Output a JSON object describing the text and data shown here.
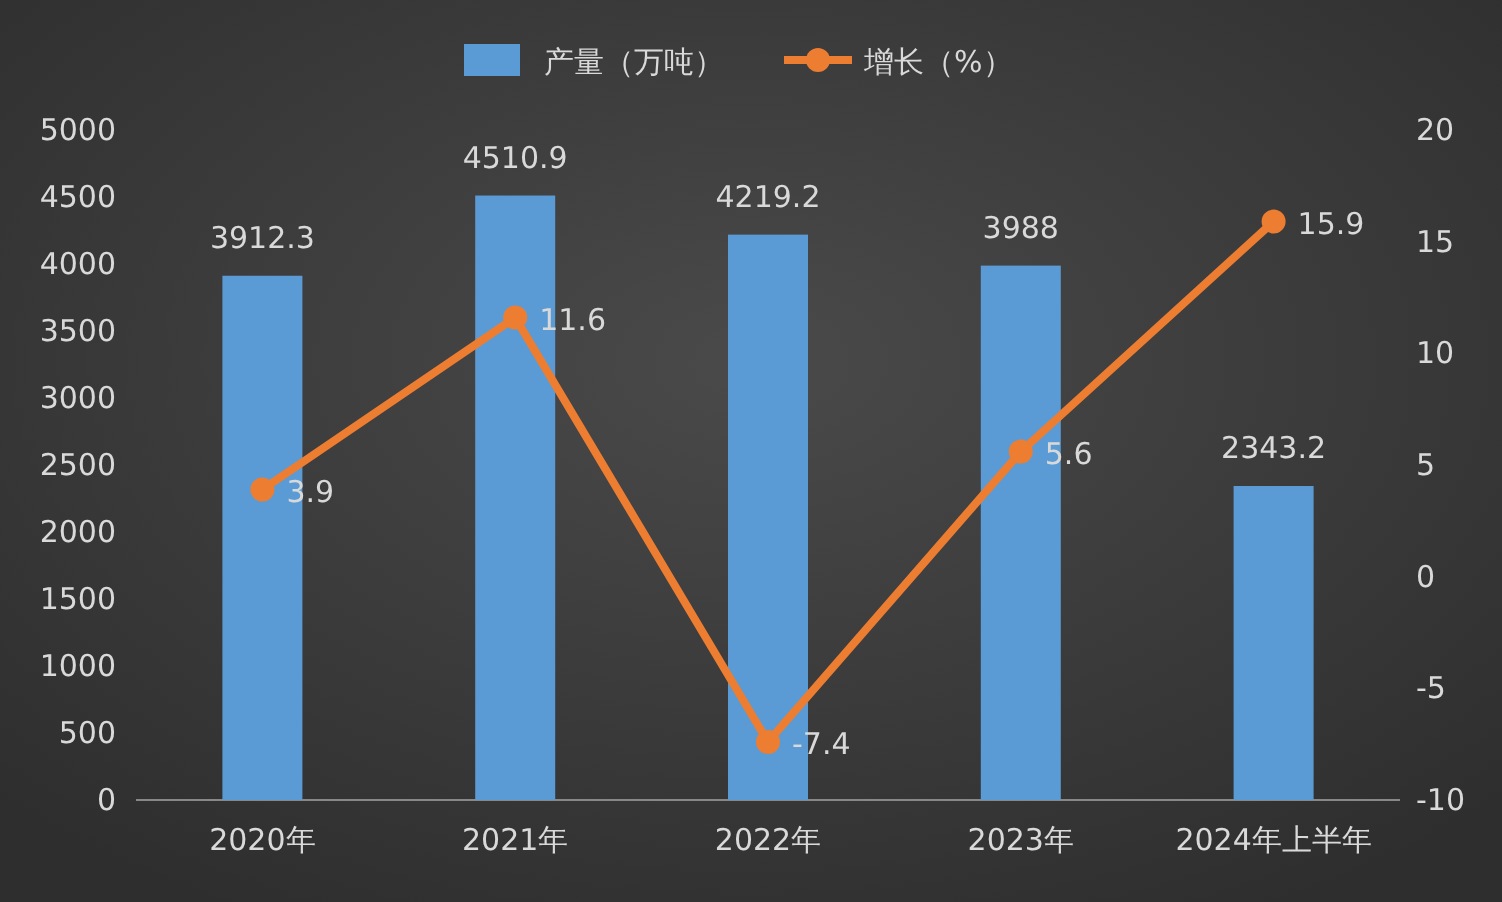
{
  "chart_data": {
    "type": "bar",
    "categories": [
      "2020年",
      "2021年",
      "2022年",
      "2023年",
      "2024年上半年"
    ],
    "series": [
      {
        "name": "产量（万吨）",
        "color": "#5b9bd5",
        "values": [
          3912.3,
          4510.9,
          4219.2,
          3988,
          2343.2
        ]
      },
      {
        "name": "增长（%）",
        "type": "line",
        "axis": "y2",
        "color": "#ed7d31",
        "values": [
          3.9,
          11.6,
          -7.4,
          5.6,
          15.9
        ]
      }
    ],
    "ylim": [
      0,
      5000
    ],
    "yticks": [
      0,
      500,
      1000,
      1500,
      2000,
      2500,
      3000,
      3500,
      4000,
      4500,
      5000
    ],
    "y2lim": [
      -10,
      20
    ],
    "y2ticks": [
      -10,
      -5,
      0,
      5,
      10,
      15,
      20
    ],
    "marker": "circle",
    "data_labels": true,
    "legend": "top"
  }
}
